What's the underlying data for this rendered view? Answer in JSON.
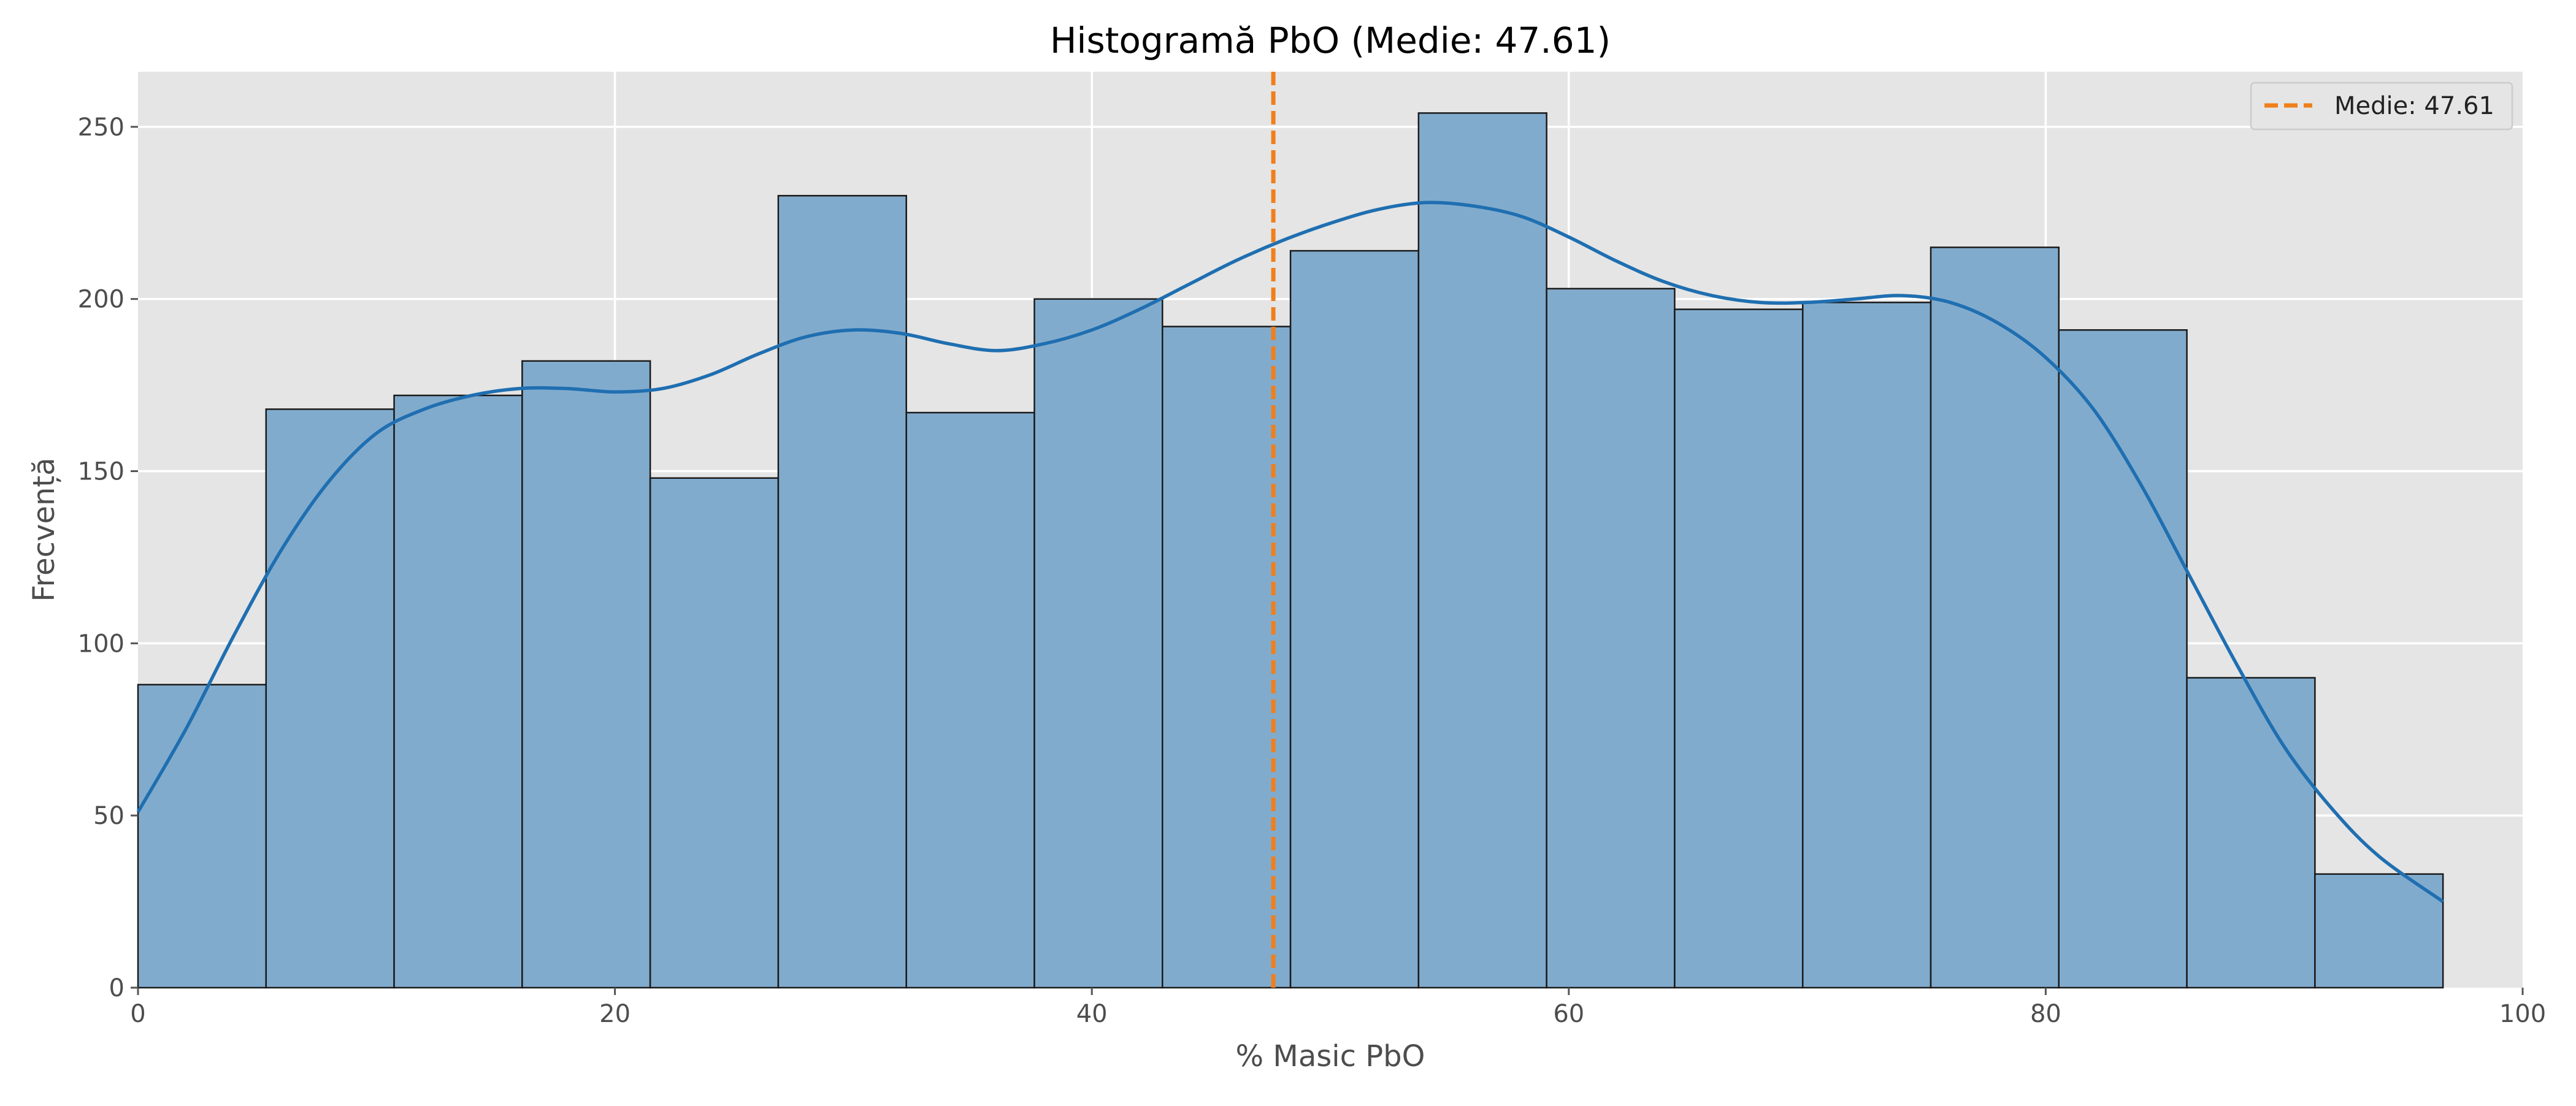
{
  "chart_data": {
    "type": "bar",
    "subtype": "histogram",
    "title": "Histogramă PbO (Medie: 47.61)",
    "xlabel": "% Masic PbO",
    "ylabel": "Frecvență",
    "xlim": [
      0,
      100
    ],
    "ylim": [
      0,
      266
    ],
    "xticks": [
      0,
      20,
      40,
      60,
      80,
      100
    ],
    "xtick_labels": [
      "0",
      "20",
      "40",
      "60",
      "80",
      "100"
    ],
    "yticks": [
      0,
      50,
      100,
      150,
      200,
      250
    ],
    "ytick_labels": [
      "0",
      "50",
      "100",
      "150",
      "200",
      "250"
    ],
    "grid": true,
    "bin_edges": [
      0,
      5.37,
      10.74,
      16.11,
      21.48,
      26.85,
      32.22,
      37.59,
      42.96,
      48.33,
      53.7,
      59.07,
      64.44,
      69.81,
      75.18,
      80.55,
      85.92,
      91.29,
      96.66
    ],
    "values": [
      88,
      168,
      172,
      182,
      148,
      230,
      167,
      200,
      192,
      214,
      254,
      203,
      197,
      199,
      215,
      191,
      90,
      33
    ],
    "kde": {
      "x": [
        0,
        2,
        4,
        6,
        8,
        10,
        12,
        14,
        16,
        18,
        20,
        22,
        24,
        26,
        28,
        30,
        32,
        34,
        36,
        38,
        40,
        42,
        44,
        46,
        48,
        50,
        52,
        54,
        56,
        58,
        60,
        62,
        64,
        66,
        68,
        70,
        72,
        74,
        76,
        78,
        80,
        82,
        84,
        86,
        88,
        90,
        92,
        94,
        96.66
      ],
      "y": [
        51,
        75,
        102,
        127,
        147,
        161,
        168,
        172,
        174,
        174,
        173,
        174,
        178,
        184,
        189,
        191,
        190,
        187,
        185,
        187,
        191,
        197,
        204,
        211,
        217,
        222,
        226,
        228,
        227,
        224,
        218,
        211,
        205,
        201,
        199,
        199,
        200,
        201,
        199,
        193,
        183,
        168,
        146,
        120,
        94,
        70,
        52,
        38,
        25
      ]
    },
    "mean": 47.61,
    "legend": {
      "entries": [
        "Medie: 47.61"
      ],
      "position": "top-right"
    },
    "colors": {
      "bar_fill": "#81abcd",
      "bar_edge": "#1a1a1a",
      "kde_line": "#1f6fb1",
      "mean_line": "#f07f1c",
      "plot_background": "#e5e5e5",
      "grid": "#ffffff"
    }
  }
}
